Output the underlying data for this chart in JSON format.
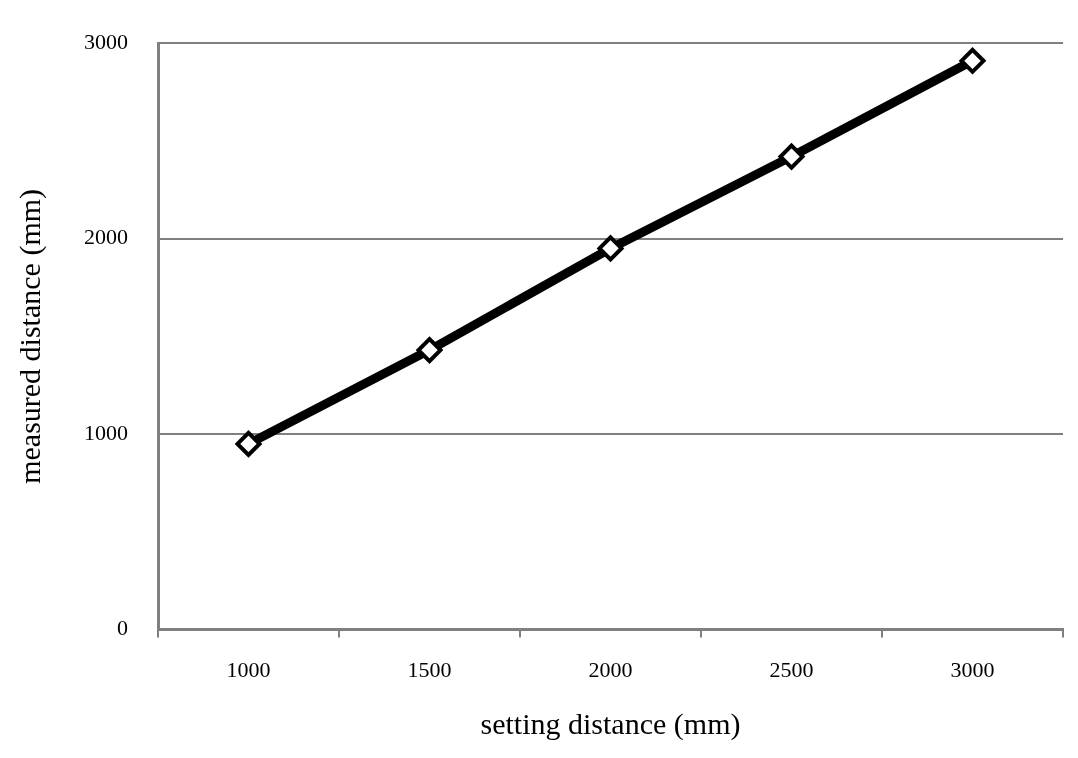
{
  "chart_data": {
    "type": "line",
    "xlabel": "setting distance (mm)",
    "ylabel": "measured distance (mm)",
    "categories": [
      "1000",
      "1500",
      "2000",
      "2500",
      "3000"
    ],
    "series": [
      {
        "color": "#000000",
        "values": [
          950,
          1430,
          1950,
          2420,
          2910
        ]
      }
    ],
    "ylim": [
      0,
      3000
    ],
    "yticks": [
      0,
      1000,
      2000,
      3000
    ],
    "grid": "y",
    "legend": false,
    "marker": "diamond",
    "line_style": "solid"
  }
}
